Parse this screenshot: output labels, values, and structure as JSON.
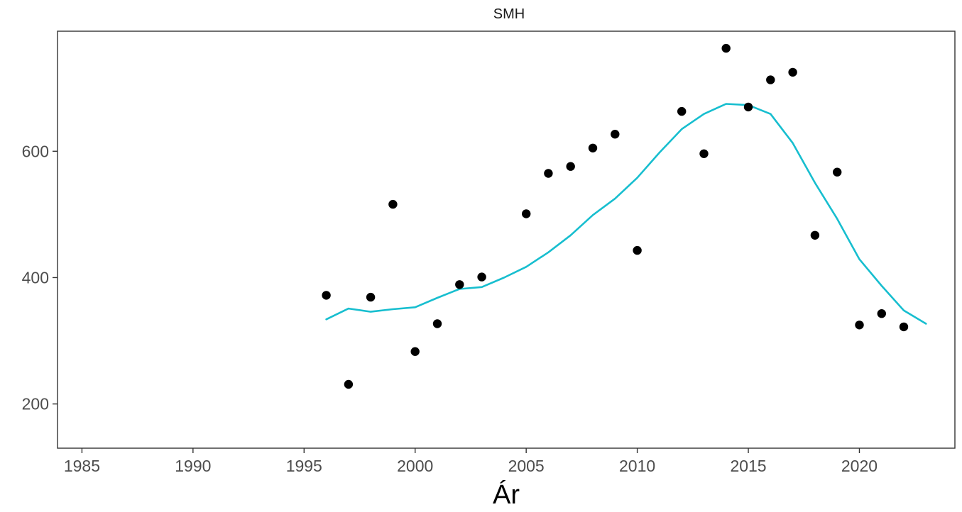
{
  "chart_data": {
    "type": "scatter",
    "title": "SMH",
    "xlabel": "Ár",
    "ylabel": "",
    "xlim": [
      1983.9,
      2024.3
    ],
    "ylim": [
      130,
      790
    ],
    "x_ticks": [
      1985,
      1990,
      1995,
      2000,
      2005,
      2010,
      2015,
      2020
    ],
    "y_ticks": [
      200,
      400,
      600
    ],
    "grid": false,
    "legend": "none",
    "colors": {
      "points": "#000000",
      "smooth": "#17becf",
      "frame": "#333333"
    },
    "series": [
      {
        "kind": "points",
        "x": [
          1996,
          1997,
          1998,
          1999,
          2000,
          2001,
          2002,
          2003,
          2005,
          2006,
          2007,
          2008,
          2009,
          2010,
          2012,
          2013,
          2014,
          2015,
          2016,
          2017,
          2018,
          2019,
          2020,
          2021,
          2022
        ],
        "y": [
          372,
          231,
          369,
          516,
          283,
          327,
          389,
          401,
          501,
          565,
          576,
          605,
          627,
          443,
          663,
          596,
          763,
          670,
          713,
          725,
          467,
          567,
          325,
          343,
          322
        ]
      },
      {
        "kind": "smooth-line",
        "x": [
          1996,
          1997,
          1998,
          1999,
          2000,
          2001,
          2002,
          2003,
          2004,
          2005,
          2006,
          2007,
          2008,
          2009,
          2010,
          2011,
          2012,
          2013,
          2014,
          2015,
          2016,
          2017,
          2018,
          2019,
          2020,
          2021,
          2022,
          2023
        ],
        "y": [
          334,
          351,
          346,
          350,
          353,
          368,
          382,
          385,
          400,
          417,
          440,
          467,
          499,
          525,
          558,
          598,
          635,
          659,
          675,
          673,
          659,
          613,
          550,
          493,
          429,
          387,
          348,
          327
        ]
      }
    ]
  }
}
